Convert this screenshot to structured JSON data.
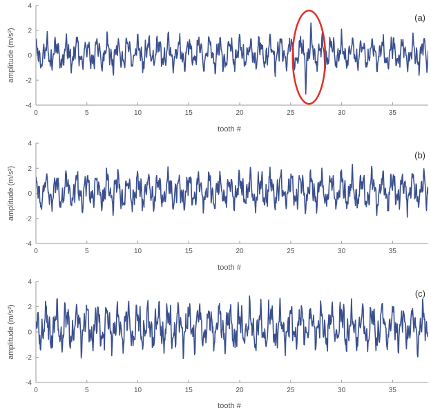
{
  "colors": {
    "series": "#3a4f8e",
    "highlight": "#e0302a",
    "axis": "#9a9a9a",
    "text": "#555555"
  },
  "chart_data": [
    {
      "type": "line",
      "panel_label": "(a)",
      "xlabel": "tooth #",
      "ylabel": "amplitude (m/s²)",
      "xlim": [
        0,
        38.5
      ],
      "ylim": [
        -4,
        4
      ],
      "xticks": [
        0,
        5,
        10,
        15,
        20,
        25,
        30,
        35
      ],
      "yticks": [
        -4,
        -2,
        0,
        2,
        4
      ],
      "amplitude_range": [
        -1.8,
        2.1
      ],
      "seed": 11,
      "fault": {
        "center": 26.6,
        "spikes": [
          {
            "x": 26.5,
            "y": -3.1
          },
          {
            "x": 27.0,
            "y": 2.6
          }
        ],
        "highlight_ellipse": {
          "x_range": [
            25.2,
            28.4
          ],
          "y_range": [
            -3.9,
            3.6
          ]
        }
      }
    },
    {
      "type": "line",
      "panel_label": "(b)",
      "xlabel": "tooth #",
      "ylabel": "amplitude (m/s²)",
      "xlim": [
        0,
        38.5
      ],
      "ylim": [
        -4,
        4
      ],
      "xticks": [
        0,
        5,
        10,
        15,
        20,
        25,
        30,
        35
      ],
      "yticks": [
        -4,
        -2,
        0,
        2,
        4
      ],
      "amplitude_range": [
        -1.9,
        2.3
      ],
      "seed": 23
    },
    {
      "type": "line",
      "panel_label": "(c)",
      "xlabel": "tooth #",
      "ylabel": "amplitude (m/s²)",
      "xlim": [
        0,
        38.5
      ],
      "ylim": [
        -4,
        4
      ],
      "xticks": [
        0,
        5,
        10,
        15,
        20,
        25,
        30,
        35
      ],
      "yticks": [
        -4,
        -2,
        0,
        2,
        4
      ],
      "amplitude_range": [
        -2.1,
        2.9
      ],
      "seed": 37
    }
  ]
}
